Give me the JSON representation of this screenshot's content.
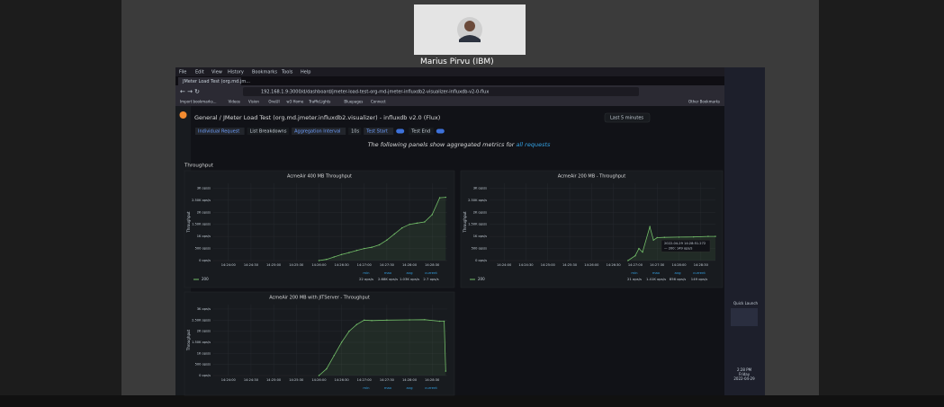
{
  "participant": {
    "name": "Marius Pirvu (IBM)"
  },
  "browser": {
    "menu": [
      "File",
      "Edit",
      "View",
      "History",
      "Bookmarks",
      "Tools",
      "Help"
    ],
    "tab": "JMeter Load Test (org.md.jm...",
    "url": "192.168.1.9:3000/d/dashboard/jmeter-load-test-org-md-jmeter-influxdb2-visualizer-influxdb-v2-0-flux",
    "bookmarks": [
      "Import bookmarks...",
      "Videos",
      "Vision",
      "OneUI",
      "w3 Home",
      "TrafficLights",
      "Bluepages",
      "Connect",
      "Other Bookmarks"
    ]
  },
  "dashboard": {
    "breadcrumb": "General / JMeter Load Test (org.md.jmeter.influxdb2.visualizer) - influxdb v2.0 (Flux)",
    "time_range": "Last 5 minutes",
    "variables": [
      "Individual Request",
      "List Breakdowns",
      "Aggregation Interval",
      "10s",
      "Test Start",
      "Test End"
    ],
    "banner": "The following panels show aggregated metrics for",
    "banner_link": "all requests",
    "row": "Throughput"
  },
  "chart_data": [
    {
      "type": "line",
      "title": "AcmeAir 400 MB Throughput",
      "y_label": "Throughput",
      "xticks": [
        "14:24:00",
        "14:24:30",
        "14:25:00",
        "14:25:30",
        "14:26:00",
        "14:26:30",
        "14:27:00",
        "14:27:30",
        "14:28:00",
        "14:28:30"
      ],
      "ylim": [
        0,
        3200
      ],
      "yticks": [
        {
          "value": 0,
          "label": "0 ops/s"
        },
        {
          "value": 500,
          "label": "500 ops/s"
        },
        {
          "value": 1000,
          "label": "1K ops/s"
        },
        {
          "value": 1500,
          "label": "1.50K ops/s"
        },
        {
          "value": 2000,
          "label": "2K ops/s"
        },
        {
          "value": 2500,
          "label": "2.50K ops/s"
        },
        {
          "value": 3000,
          "label": "3K ops/s"
        }
      ],
      "x": [
        "14:26:00",
        "14:26:10",
        "14:26:20",
        "14:26:30",
        "14:26:40",
        "14:26:50",
        "14:27:00",
        "14:27:10",
        "14:27:20",
        "14:27:30",
        "14:27:40",
        "14:27:50",
        "14:28:00",
        "14:28:10",
        "14:28:20",
        "14:28:30",
        "14:28:40",
        "14:28:48"
      ],
      "series": [
        {
          "name": "200",
          "color": "#73bf69",
          "values": [
            0,
            50,
            150,
            250,
            330,
            420,
            500,
            550,
            650,
            850,
            1100,
            1350,
            1500,
            1550,
            1600,
            1900,
            2600,
            2620
          ]
        }
      ],
      "legend_headers": [
        "min",
        "max",
        "avg",
        "current"
      ],
      "legend_values": [
        "22 ops/s",
        "2.68K ops/s",
        "1.03K ops/s",
        "2.7 ops/s"
      ]
    },
    {
      "type": "line",
      "title": "AcmeAir 200 MB - Throughput",
      "y_label": "Throughput",
      "xticks": [
        "14:24:00",
        "14:24:30",
        "14:25:00",
        "14:25:30",
        "14:26:00",
        "14:26:30",
        "14:27:00",
        "14:27:30",
        "14:28:00",
        "14:28:30"
      ],
      "ylim": [
        0,
        3200
      ],
      "yticks": [
        {
          "value": 0,
          "label": "0 ops/s"
        },
        {
          "value": 500,
          "label": "500 ops/s"
        },
        {
          "value": 1000,
          "label": "1K ops/s"
        },
        {
          "value": 1500,
          "label": "1.50K ops/s"
        },
        {
          "value": 2000,
          "label": "2K ops/s"
        },
        {
          "value": 2500,
          "label": "2.50K ops/s"
        },
        {
          "value": 3000,
          "label": "3K ops/s"
        }
      ],
      "x": [
        "14:26:50",
        "14:27:00",
        "14:27:05",
        "14:27:10",
        "14:27:20",
        "14:27:25",
        "14:27:30",
        "14:27:40",
        "14:28:00",
        "14:28:20",
        "14:28:40",
        "14:28:50"
      ],
      "series": [
        {
          "name": "200",
          "color": "#73bf69",
          "values": [
            0,
            200,
            500,
            350,
            1400,
            850,
            950,
            960,
            970,
            980,
            1000,
            1000
          ]
        }
      ],
      "legend_headers": [
        "min",
        "max",
        "avg",
        "current"
      ],
      "legend_values": [
        "21 ops/s",
        "1.41K ops/s",
        "856 ops/s",
        "149 ops/s"
      ],
      "tooltip": {
        "time": "2022-04-29 14:28:51.272",
        "text": "— 200:   149 ops/s"
      }
    },
    {
      "type": "line",
      "title": "AcmeAir 200 MB with JITServer - Throughput",
      "y_label": "Throughput",
      "xticks": [
        "14:24:00",
        "14:24:30",
        "14:25:00",
        "14:25:30",
        "14:26:00",
        "14:26:30",
        "14:27:00",
        "14:27:30",
        "14:28:00",
        "14:28:30"
      ],
      "ylim": [
        0,
        3200
      ],
      "yticks": [
        {
          "value": 0,
          "label": "0 ops/s"
        },
        {
          "value": 500,
          "label": "500 ops/s"
        },
        {
          "value": 1000,
          "label": "1K ops/s"
        },
        {
          "value": 1500,
          "label": "1.50K ops/s"
        },
        {
          "value": 2000,
          "label": "2K ops/s"
        },
        {
          "value": 2500,
          "label": "2.50K ops/s"
        },
        {
          "value": 3000,
          "label": "3K ops/s"
        }
      ],
      "x": [
        "14:26:00",
        "14:26:10",
        "14:26:20",
        "14:26:30",
        "14:26:40",
        "14:26:50",
        "14:27:00",
        "14:27:10",
        "14:27:30",
        "14:28:00",
        "14:28:20",
        "14:28:40",
        "14:28:46",
        "14:28:48"
      ],
      "series": [
        {
          "name": "200",
          "color": "#73bf69",
          "values": [
            0,
            300,
            900,
            1500,
            2000,
            2300,
            2500,
            2480,
            2500,
            2510,
            2520,
            2450,
            2450,
            200
          ]
        }
      ],
      "legend_headers": [
        "min",
        "max",
        "avg",
        "current"
      ]
    }
  ],
  "taskbar": {
    "quick_launch": "Quick Launch",
    "time": "2:28 PM",
    "day": "Friday",
    "date": "2022-04-29"
  }
}
